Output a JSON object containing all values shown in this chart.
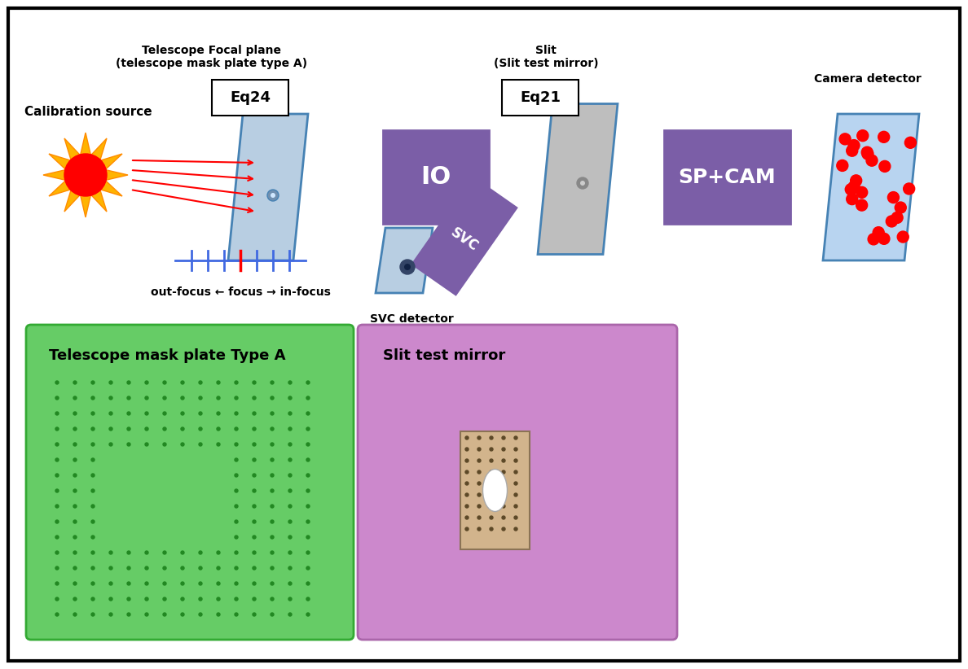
{
  "bg_color": "#ffffff",
  "border_color": "#000000",
  "calibration_source_label": "Calibration source",
  "focal_plane_label": "Telescope Focal plane\n(telescope mask plate type A)",
  "slit_label": "Slit\n(Slit test mirror)",
  "camera_detector_label": "Camera detector",
  "io_label": "IO",
  "svc_label": "SVC",
  "spcam_label": "SP+CAM",
  "eq24_label": "Eq24",
  "eq21_label": "Eq21",
  "focus_label": "out-focus ← focus → in-focus",
  "svc_detector_label": "SVC detector",
  "telescope_mask_label": "Telescope mask plate Type A",
  "slit_test_label": "Slit test mirror",
  "purple_color": "#7B5EA7",
  "light_blue_color": "#B8CEE2",
  "steel_blue_border": "#4682B4",
  "gray_color": "#BEBEBE",
  "green_color": "#66CC66",
  "pink_color": "#CC88CC",
  "tan_color": "#D2B48C",
  "red_color": "#FF0000"
}
